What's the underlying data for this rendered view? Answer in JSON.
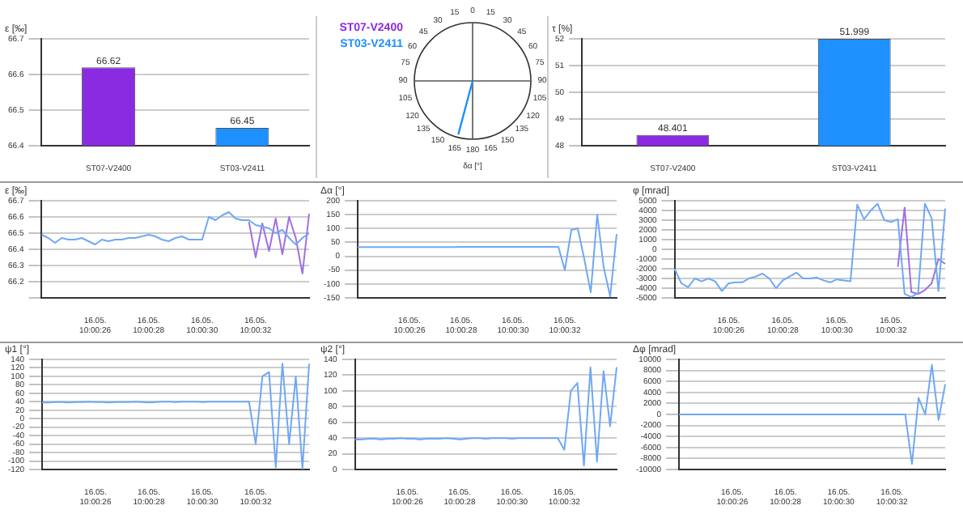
{
  "chart_data": [
    {
      "type": "bar",
      "ylabel": "ε [‰]",
      "categories": [
        "ST07-V2400",
        "ST03-V2411"
      ],
      "values": [
        66.62,
        66.45
      ],
      "colors": [
        "#8a2be2",
        "#1e90ff"
      ],
      "ylim": [
        66.4,
        66.7
      ],
      "yticks": [
        66.4,
        66.5,
        66.6,
        66.7
      ],
      "grid": "y",
      "data_labels": true
    },
    {
      "type": "other",
      "annotations": [
        "ST07-V2400",
        "ST03-V2411"
      ],
      "colors": [
        "#8a2be2",
        "#1e90ff"
      ],
      "categories": [
        "0",
        "15",
        "30",
        "45",
        "60",
        "75",
        "90",
        "105",
        "120",
        "135",
        "150",
        "165",
        "180",
        "165",
        "150",
        "135",
        "120",
        "105",
        "90",
        "75",
        "60",
        "45",
        "30",
        "15"
      ],
      "xlabel": "δα [°]"
    },
    {
      "type": "bar",
      "ylabel": "τ [%]",
      "categories": [
        "ST07-V2400",
        "ST03-V2411"
      ],
      "values": [
        48.401,
        51.999
      ],
      "colors": [
        "#8a2be2",
        "#1e90ff"
      ],
      "ylim": [
        48,
        52
      ],
      "yticks": [
        48,
        49,
        50,
        51,
        52
      ],
      "grid": "y",
      "data_labels": true
    },
    {
      "type": "line",
      "ylabel": "ε [‰]",
      "categories": [
        null,
        null,
        null,
        null,
        null,
        null,
        null,
        null,
        "16.05. 10:00:26",
        null,
        null,
        null,
        null,
        null,
        null,
        null,
        "16.05. 10:00:28",
        null,
        null,
        null,
        null,
        null,
        null,
        null,
        "16.05. 10:00:30",
        null,
        null,
        null,
        null,
        null,
        null,
        null,
        "16.05. 10:00:32",
        null,
        null,
        null,
        null,
        null,
        null,
        null,
        null
      ],
      "ylim": [
        66.1,
        66.7
      ],
      "yticks": [
        {
          "value": 66.1,
          "label": null
        },
        66.2,
        66.3,
        66.4,
        66.5,
        66.6,
        66.7
      ],
      "grid": "y",
      "series": [
        {
          "color": "#6fa8f5",
          "values": [
            66.49,
            66.47,
            66.44,
            66.47,
            66.46,
            66.46,
            66.47,
            66.45,
            66.43,
            66.46,
            66.45,
            66.46,
            66.46,
            66.47,
            66.47,
            66.48,
            66.49,
            66.48,
            66.46,
            66.45,
            66.47,
            66.48,
            66.46,
            66.46,
            66.46,
            66.6,
            66.58,
            66.61,
            66.63,
            66.59,
            66.58,
            66.58,
            66.55,
            66.54,
            66.53,
            66.5,
            66.52,
            66.47,
            66.43,
            66.47,
            66.5
          ]
        },
        {
          "color": "#a070e0",
          "values": [
            null,
            null,
            null,
            null,
            null,
            null,
            null,
            null,
            null,
            null,
            null,
            null,
            null,
            null,
            null,
            null,
            null,
            null,
            null,
            null,
            null,
            null,
            null,
            null,
            null,
            null,
            null,
            null,
            null,
            null,
            null,
            66.57,
            66.35,
            66.56,
            66.39,
            66.59,
            66.37,
            66.6,
            66.47,
            66.25,
            66.62
          ]
        }
      ]
    },
    {
      "type": "line",
      "ylabel": "Δα [°]",
      "categories": [
        null,
        null,
        null,
        null,
        null,
        null,
        null,
        null,
        "16.05. 10:00:26",
        null,
        null,
        null,
        null,
        null,
        null,
        null,
        "16.05. 10:00:28",
        null,
        null,
        null,
        null,
        null,
        null,
        null,
        "16.05. 10:00:30",
        null,
        null,
        null,
        null,
        null,
        null,
        null,
        "16.05. 10:00:32",
        null,
        null,
        null,
        null,
        null,
        null,
        null,
        null
      ],
      "ylim": [
        -150,
        200
      ],
      "yticks": [
        -150,
        -100,
        -50,
        0,
        50,
        100,
        150,
        200
      ],
      "grid": "y",
      "series": [
        {
          "color": "#6fa8f5",
          "values": [
            33,
            33,
            33,
            33,
            33,
            33,
            33,
            33,
            33,
            33,
            33,
            33,
            33,
            33,
            33,
            33,
            34,
            34,
            34,
            34,
            34,
            34,
            34,
            34,
            34,
            34,
            34,
            34,
            34,
            34,
            34,
            34,
            -50,
            95,
            100,
            -10,
            -130,
            150,
            -40,
            -145,
            80
          ]
        }
      ]
    },
    {
      "type": "line",
      "ylabel": "φ [mrad]",
      "categories": [
        null,
        null,
        null,
        null,
        null,
        null,
        null,
        null,
        "16.05. 10:00:26",
        null,
        null,
        null,
        null,
        null,
        null,
        null,
        "16.05. 10:00:28",
        null,
        null,
        null,
        null,
        null,
        null,
        null,
        "16.05. 10:00:30",
        null,
        null,
        null,
        null,
        null,
        null,
        null,
        "16.05. 10:00:32",
        null,
        null,
        null,
        null,
        null,
        null,
        null,
        null
      ],
      "ylim": [
        -5000,
        5000
      ],
      "yticks": [
        -5000,
        -4000,
        -3000,
        -2000,
        -1000,
        0,
        1000,
        2000,
        3000,
        4000,
        5000
      ],
      "grid": "y",
      "series": [
        {
          "color": "#6fa8f5",
          "values": [
            -2000,
            -3500,
            -3900,
            -3000,
            -3300,
            -3000,
            -3300,
            -4300,
            -3500,
            -3400,
            -3400,
            -3000,
            -2800,
            -2500,
            -3000,
            -4000,
            -3200,
            -2800,
            -2400,
            -3000,
            -3000,
            -2900,
            -3200,
            -3400,
            -3100,
            -3200,
            -3300,
            4600,
            3100,
            4000,
            4700,
            3000,
            2800,
            3100,
            -4600,
            -4900,
            -4500,
            4700,
            3200,
            -4300,
            4200
          ]
        },
        {
          "color": "#a070e0",
          "values": [
            null,
            null,
            null,
            null,
            null,
            null,
            null,
            null,
            null,
            null,
            null,
            null,
            null,
            null,
            null,
            null,
            null,
            null,
            null,
            null,
            null,
            null,
            null,
            null,
            null,
            null,
            null,
            null,
            null,
            null,
            null,
            null,
            null,
            -1800,
            4300,
            -4400,
            -4600,
            -4200,
            -3500,
            -1000,
            -1500
          ]
        }
      ]
    },
    {
      "type": "line",
      "ylabel": "ψ1 [°]",
      "categories": [
        null,
        null,
        null,
        null,
        null,
        null,
        null,
        null,
        "16.05. 10:00:26",
        null,
        null,
        null,
        null,
        null,
        null,
        null,
        "16.05. 10:00:28",
        null,
        null,
        null,
        null,
        null,
        null,
        null,
        "16.05. 10:00:30",
        null,
        null,
        null,
        null,
        null,
        null,
        null,
        "16.05. 10:00:32",
        null,
        null,
        null,
        null,
        null,
        null,
        null,
        null
      ],
      "ylim": [
        -120,
        140
      ],
      "yticks": [
        -120,
        -100,
        -80,
        -60,
        -40,
        -20,
        0,
        20,
        40,
        60,
        80,
        100,
        120,
        140
      ],
      "grid": "y",
      "series": [
        {
          "color": "#6fa8f5",
          "values": [
            38,
            38,
            39,
            39,
            38,
            39,
            39,
            40,
            39,
            39,
            38,
            39,
            39,
            39,
            40,
            39,
            38,
            39,
            40,
            40,
            39,
            40,
            40,
            40,
            39,
            40,
            40,
            40,
            40,
            40,
            40,
            40,
            -60,
            100,
            110,
            -115,
            130,
            -60,
            100,
            -118,
            130
          ]
        }
      ]
    },
    {
      "type": "line",
      "ylabel": "ψ2 [°]",
      "categories": [
        null,
        null,
        null,
        null,
        null,
        null,
        null,
        null,
        "16.05. 10:00:26",
        null,
        null,
        null,
        null,
        null,
        null,
        null,
        "16.05. 10:00:28",
        null,
        null,
        null,
        null,
        null,
        null,
        null,
        "16.05. 10:00:30",
        null,
        null,
        null,
        null,
        null,
        null,
        null,
        "16.05. 10:00:32",
        null,
        null,
        null,
        null,
        null,
        null,
        null,
        null
      ],
      "ylim": [
        0,
        140
      ],
      "yticks": [
        0,
        20,
        40,
        60,
        80,
        100,
        120,
        140
      ],
      "grid": "y",
      "series": [
        {
          "color": "#6fa8f5",
          "values": [
            38,
            38,
            39,
            39,
            38,
            39,
            39,
            40,
            39,
            39,
            38,
            39,
            39,
            39,
            40,
            39,
            38,
            39,
            40,
            40,
            39,
            40,
            40,
            40,
            39,
            40,
            40,
            40,
            40,
            40,
            40,
            40,
            25,
            100,
            110,
            5,
            130,
            10,
            125,
            55,
            130
          ]
        }
      ]
    },
    {
      "type": "line",
      "ylabel": "Δφ [mrad]",
      "categories": [
        null,
        null,
        null,
        null,
        null,
        null,
        null,
        null,
        "16.05. 10:00:26",
        null,
        null,
        null,
        null,
        null,
        null,
        null,
        "16.05. 10:00:28",
        null,
        null,
        null,
        null,
        null,
        null,
        null,
        "16.05. 10:00:30",
        null,
        null,
        null,
        null,
        null,
        null,
        null,
        "16.05. 10:00:32",
        null,
        null,
        null,
        null,
        null,
        null,
        null,
        null
      ],
      "ylim": [
        -10000,
        10000
      ],
      "yticks": [
        -10000,
        -8000,
        -6000,
        -4000,
        -2000,
        0,
        2000,
        4000,
        6000,
        8000,
        10000
      ],
      "grid": "y",
      "series": [
        {
          "color": "#6fa8f5",
          "values": [
            0,
            0,
            0,
            0,
            0,
            0,
            0,
            0,
            0,
            0,
            0,
            0,
            0,
            0,
            0,
            0,
            0,
            0,
            0,
            0,
            0,
            0,
            0,
            0,
            0,
            0,
            0,
            0,
            0,
            0,
            0,
            0,
            0,
            0,
            0,
            -9000,
            3000,
            0,
            9000,
            -1000,
            5500
          ]
        }
      ]
    }
  ]
}
